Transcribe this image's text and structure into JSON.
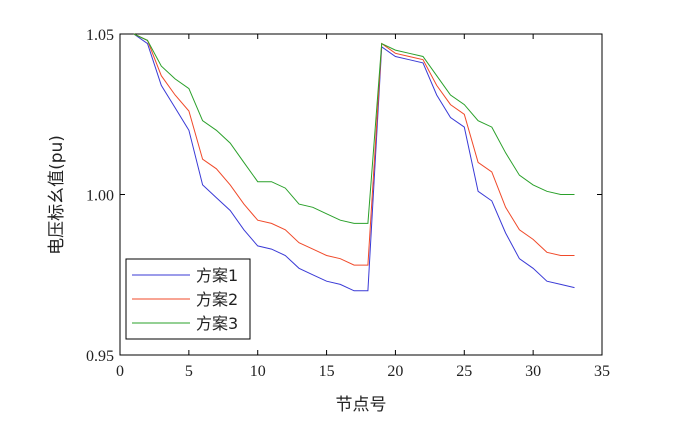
{
  "chart_data": {
    "type": "line",
    "title": "",
    "xlabel": "节点号",
    "ylabel": "电压标幺值(pu)",
    "xlim": [
      0,
      35
    ],
    "ylim": [
      0.95,
      1.05
    ],
    "xticks": [
      "0",
      "5",
      "10",
      "15",
      "20",
      "25",
      "30",
      "35"
    ],
    "yticks": [
      "0.95",
      "1.00",
      "1.05"
    ],
    "grid": false,
    "legend_position": "bottom-left",
    "x": [
      1,
      2,
      3,
      4,
      5,
      6,
      7,
      8,
      9,
      10,
      11,
      12,
      13,
      14,
      15,
      16,
      17,
      18,
      19,
      20,
      21,
      22,
      23,
      24,
      25,
      26,
      27,
      28,
      29,
      30,
      31,
      32,
      33
    ],
    "series": [
      {
        "name": "方案1",
        "color": "#3a3ad6",
        "values": [
          1.05,
          1.047,
          1.034,
          1.027,
          1.02,
          1.003,
          0.999,
          0.995,
          0.989,
          0.984,
          0.983,
          0.981,
          0.977,
          0.975,
          0.973,
          0.972,
          0.97,
          0.97,
          1.046,
          1.043,
          1.042,
          1.041,
          1.031,
          1.024,
          1.021,
          1.001,
          0.998,
          0.988,
          0.98,
          0.977,
          0.973,
          0.972,
          0.971
        ]
      },
      {
        "name": "方案2",
        "color": "#f04a2a",
        "values": [
          1.05,
          1.048,
          1.037,
          1.031,
          1.026,
          1.011,
          1.008,
          1.003,
          0.997,
          0.992,
          0.991,
          0.989,
          0.985,
          0.983,
          0.981,
          0.98,
          0.978,
          0.978,
          1.047,
          1.044,
          1.043,
          1.042,
          1.034,
          1.028,
          1.025,
          1.01,
          1.007,
          0.996,
          0.989,
          0.986,
          0.982,
          0.981,
          0.981
        ]
      },
      {
        "name": "方案3",
        "color": "#2aa02a",
        "values": [
          1.05,
          1.048,
          1.04,
          1.036,
          1.033,
          1.023,
          1.02,
          1.016,
          1.01,
          1.004,
          1.004,
          1.002,
          0.997,
          0.996,
          0.994,
          0.992,
          0.991,
          0.991,
          1.047,
          1.045,
          1.044,
          1.043,
          1.037,
          1.031,
          1.028,
          1.023,
          1.021,
          1.013,
          1.006,
          1.003,
          1.001,
          1.0,
          1.0
        ]
      }
    ]
  }
}
